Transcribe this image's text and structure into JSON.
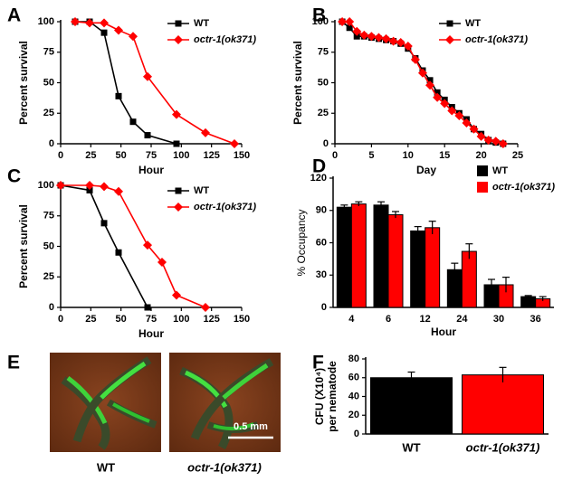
{
  "chart_data": [
    {
      "type": "line",
      "panel": "A",
      "xlabel": "Hour",
      "ylabel": "Percent survival",
      "xlim": [
        0,
        150
      ],
      "xticks": [
        0,
        25,
        50,
        75,
        100,
        125,
        150
      ],
      "ylim": [
        0,
        100
      ],
      "yticks": [
        0,
        25,
        50,
        75,
        100
      ],
      "series": [
        {
          "name": "WT",
          "color": "#000000",
          "marker": "square",
          "x": [
            12,
            24,
            36,
            48,
            60,
            72,
            96
          ],
          "values": [
            100,
            100,
            91,
            39,
            18,
            7,
            0
          ]
        },
        {
          "name": "octr-1(ok371)",
          "color": "#ff0000",
          "marker": "diamond",
          "x": [
            12,
            24,
            36,
            48,
            60,
            72,
            96,
            120,
            144
          ],
          "values": [
            100,
            99,
            99,
            93,
            88,
            55,
            24,
            9,
            0
          ]
        }
      ]
    },
    {
      "type": "line",
      "panel": "B",
      "xlabel": "Day",
      "ylabel": "Percent survival",
      "xlim": [
        0,
        25
      ],
      "xticks": [
        0,
        5,
        10,
        15,
        20,
        25
      ],
      "ylim": [
        0,
        100
      ],
      "yticks": [
        0,
        25,
        50,
        75,
        100
      ],
      "series": [
        {
          "name": "WT",
          "color": "#000000",
          "marker": "square",
          "x": [
            1,
            2,
            3,
            4,
            5,
            6,
            7,
            8,
            9,
            10,
            11,
            12,
            13,
            14,
            15,
            16,
            17,
            18,
            19,
            20,
            21,
            22,
            23
          ],
          "values": [
            100,
            95,
            88,
            88,
            87,
            86,
            85,
            84,
            82,
            78,
            70,
            60,
            52,
            42,
            36,
            30,
            25,
            20,
            12,
            8,
            3,
            1,
            0
          ]
        },
        {
          "name": "octr-1(ok371)",
          "color": "#ff0000",
          "marker": "diamond",
          "x": [
            1,
            2,
            3,
            4,
            5,
            6,
            7,
            8,
            9,
            10,
            11,
            12,
            13,
            14,
            15,
            16,
            17,
            18,
            19,
            20,
            21,
            22,
            23
          ],
          "values": [
            100,
            100,
            92,
            89,
            88,
            87,
            86,
            84,
            83,
            80,
            69,
            58,
            48,
            38,
            33,
            27,
            23,
            17,
            12,
            6,
            3,
            2,
            0
          ]
        }
      ]
    },
    {
      "type": "line",
      "panel": "C",
      "xlabel": "Hour",
      "ylabel": "Percent survival",
      "xlim": [
        0,
        150
      ],
      "xticks": [
        0,
        25,
        50,
        75,
        100,
        125,
        150
      ],
      "ylim": [
        0,
        100
      ],
      "yticks": [
        0,
        25,
        50,
        75,
        100
      ],
      "series": [
        {
          "name": "WT",
          "color": "#000000",
          "marker": "square",
          "x": [
            0,
            24,
            36,
            48,
            72
          ],
          "values": [
            100,
            96,
            69,
            45,
            0
          ]
        },
        {
          "name": "octr-1(ok371)",
          "color": "#ff0000",
          "marker": "diamond",
          "x": [
            0,
            24,
            36,
            48,
            72,
            84,
            96,
            120
          ],
          "values": [
            100,
            100,
            99,
            95,
            51,
            37,
            10,
            0
          ]
        }
      ]
    },
    {
      "type": "bar",
      "panel": "D",
      "xlabel": "Hour",
      "ylabel": "% Occupancy",
      "categories": [
        "4",
        "6",
        "12",
        "24",
        "30",
        "36"
      ],
      "ylim": [
        0,
        120
      ],
      "yticks": [
        0,
        30,
        60,
        90,
        120
      ],
      "series": [
        {
          "name": "WT",
          "color": "#000000",
          "values": [
            93,
            95,
            71,
            35,
            21,
            10
          ],
          "errors": [
            2,
            3,
            4,
            6,
            5,
            1
          ]
        },
        {
          "name": "octr-1(ok371)",
          "color": "#ff0000",
          "values": [
            96,
            86,
            74,
            52,
            21,
            8
          ],
          "errors": [
            2,
            3,
            6,
            7,
            7,
            2
          ]
        }
      ]
    },
    {
      "type": "bar",
      "panel": "F",
      "ylabel": [
        "CFU (X10⁴)",
        "per nematode"
      ],
      "categories": [
        "WT",
        "octr-1(ok371)"
      ],
      "ylim": [
        0,
        80
      ],
      "yticks": [
        0,
        20,
        40,
        60,
        80
      ],
      "series": [
        {
          "colors": [
            "#000000",
            "#ff0000"
          ],
          "values": [
            60,
            63
          ],
          "errors": [
            6,
            8
          ]
        }
      ]
    }
  ],
  "panel_e": {
    "label": "E",
    "captions": [
      "WT",
      "octr-1(ok371)"
    ],
    "scale_bar": "0.5 mm"
  }
}
